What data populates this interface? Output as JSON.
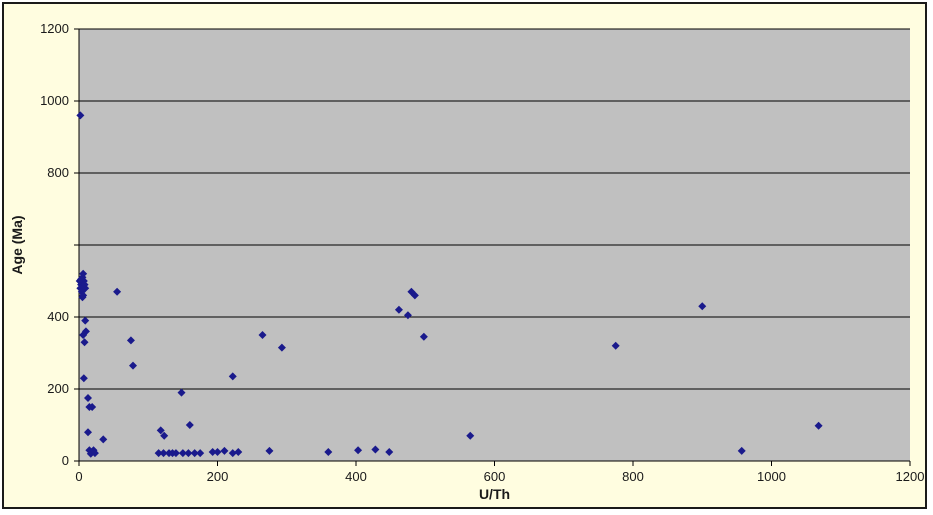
{
  "chart_data": {
    "type": "scatter",
    "title": "",
    "xlabel": "U/Th",
    "ylabel": "Age (Ma)",
    "xlim": [
      0,
      1200
    ],
    "ylim": [
      0,
      1200
    ],
    "x_ticks": [
      "0",
      "200",
      "400",
      "600",
      "800",
      "1000",
      "1200"
    ],
    "y_ticks": [
      "0",
      "200",
      "400",
      "800",
      "1000",
      "1200"
    ],
    "y_tick_values": [
      0,
      200,
      400,
      800,
      1000,
      1200
    ],
    "grid": true,
    "legend": "none",
    "colors": {
      "plot_area": "#c0c0c0",
      "marker": "#1a1a8c",
      "frame": "#fffde0",
      "gridline": "#000000"
    },
    "points": [
      {
        "x": 2,
        "y": 960
      },
      {
        "x": 1,
        "y": 500
      },
      {
        "x": 3,
        "y": 490
      },
      {
        "x": 5,
        "y": 510
      },
      {
        "x": 2,
        "y": 480
      },
      {
        "x": 6,
        "y": 520
      },
      {
        "x": 4,
        "y": 470
      },
      {
        "x": 7,
        "y": 500
      },
      {
        "x": 5,
        "y": 455
      },
      {
        "x": 8,
        "y": 490
      },
      {
        "x": 6,
        "y": 460
      },
      {
        "x": 3,
        "y": 505
      },
      {
        "x": 9,
        "y": 480
      },
      {
        "x": 6,
        "y": 350
      },
      {
        "x": 8,
        "y": 330
      },
      {
        "x": 10,
        "y": 360
      },
      {
        "x": 9,
        "y": 390
      },
      {
        "x": 7,
        "y": 230
      },
      {
        "x": 13,
        "y": 175
      },
      {
        "x": 15,
        "y": 150
      },
      {
        "x": 19,
        "y": 150
      },
      {
        "x": 13,
        "y": 80
      },
      {
        "x": 15,
        "y": 30
      },
      {
        "x": 17,
        "y": 20
      },
      {
        "x": 19,
        "y": 25
      },
      {
        "x": 21,
        "y": 30
      },
      {
        "x": 23,
        "y": 22
      },
      {
        "x": 35,
        "y": 60
      },
      {
        "x": 55,
        "y": 470
      },
      {
        "x": 75,
        "y": 335
      },
      {
        "x": 78,
        "y": 265
      },
      {
        "x": 118,
        "y": 85
      },
      {
        "x": 123,
        "y": 70
      },
      {
        "x": 115,
        "y": 22
      },
      {
        "x": 122,
        "y": 22
      },
      {
        "x": 130,
        "y": 22
      },
      {
        "x": 135,
        "y": 22
      },
      {
        "x": 140,
        "y": 22
      },
      {
        "x": 150,
        "y": 22
      },
      {
        "x": 158,
        "y": 22
      },
      {
        "x": 167,
        "y": 22
      },
      {
        "x": 175,
        "y": 22
      },
      {
        "x": 148,
        "y": 190
      },
      {
        "x": 160,
        "y": 100
      },
      {
        "x": 193,
        "y": 25
      },
      {
        "x": 200,
        "y": 25
      },
      {
        "x": 210,
        "y": 28
      },
      {
        "x": 222,
        "y": 22
      },
      {
        "x": 230,
        "y": 25
      },
      {
        "x": 222,
        "y": 235
      },
      {
        "x": 265,
        "y": 350
      },
      {
        "x": 275,
        "y": 28
      },
      {
        "x": 293,
        "y": 315
      },
      {
        "x": 360,
        "y": 25
      },
      {
        "x": 403,
        "y": 30
      },
      {
        "x": 428,
        "y": 32
      },
      {
        "x": 448,
        "y": 25
      },
      {
        "x": 462,
        "y": 420
      },
      {
        "x": 475,
        "y": 405
      },
      {
        "x": 480,
        "y": 470
      },
      {
        "x": 485,
        "y": 460
      },
      {
        "x": 498,
        "y": 345
      },
      {
        "x": 565,
        "y": 70
      },
      {
        "x": 775,
        "y": 320
      },
      {
        "x": 900,
        "y": 430
      },
      {
        "x": 957,
        "y": 28
      },
      {
        "x": 1068,
        "y": 98
      }
    ]
  }
}
